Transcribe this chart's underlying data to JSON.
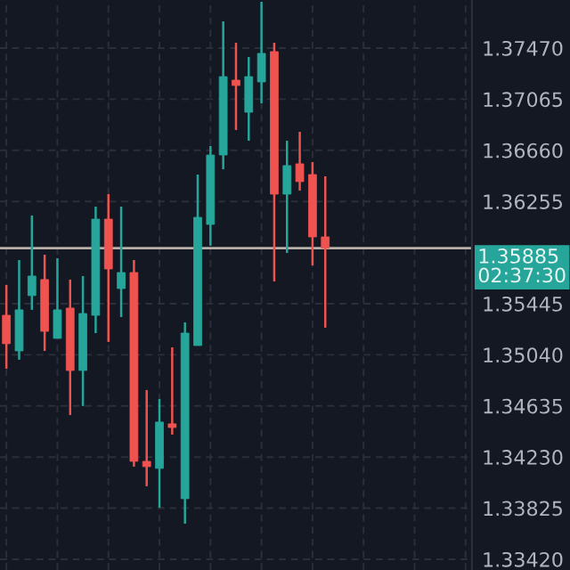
{
  "chart_data": {
    "type": "candlestick",
    "categories": [
      null,
      null,
      null,
      null,
      null,
      null,
      null,
      null,
      null,
      null,
      null,
      null,
      null,
      null,
      null,
      null,
      null,
      null,
      null,
      null,
      null,
      null,
      null,
      null,
      null,
      null,
      null,
      null,
      null,
      null,
      null,
      null,
      null,
      null,
      null,
      null,
      null
    ],
    "ohlc": [
      [
        1.35353,
        1.35593,
        1.3493,
        1.35128
      ],
      [
        1.35071,
        1.35791,
        1.35001,
        1.35396
      ],
      [
        1.35509,
        1.36144,
        1.35396,
        1.35664
      ],
      [
        1.35636,
        1.35833,
        1.35071,
        1.35226
      ],
      [
        1.3517,
        1.35805,
        1.3517,
        1.35396
      ],
      [
        1.3541,
        1.35636,
        1.34563,
        1.34916
      ],
      [
        1.34916,
        1.35664,
        1.34634,
        1.35367
      ],
      [
        1.35353,
        1.36214,
        1.35212,
        1.36115
      ],
      [
        1.36115,
        1.36313,
        1.35142,
        1.3572
      ],
      [
        1.35565,
        1.36214,
        1.35339,
        1.35692
      ],
      [
        1.35692,
        1.35791,
        1.34154,
        1.34196
      ],
      [
        1.34196,
        1.34761,
        1.33999,
        1.34154
      ],
      [
        1.3414,
        1.3469,
        1.33829,
        1.34507
      ],
      [
        1.34493,
        1.35099,
        1.34408,
        1.34464
      ],
      [
        1.339,
        1.35297,
        1.33702,
        1.35212
      ],
      [
        1.35113,
        1.36468,
        1.35113,
        1.36129
      ],
      [
        1.36073,
        1.36694,
        1.35904,
        1.36623
      ],
      [
        1.36623,
        1.37682,
        1.3651,
        1.37244
      ],
      [
        1.37216,
        1.37512,
        1.36821,
        1.37174
      ],
      [
        1.36962,
        1.37399,
        1.36736,
        1.37244
      ],
      [
        1.37202,
        1.37837,
        1.37033,
        1.37428
      ],
      [
        1.37442,
        1.37512,
        1.35621,
        1.36313
      ],
      [
        1.36313,
        1.36736,
        1.35847,
        1.36539
      ],
      [
        1.36553,
        1.36807,
        1.36341,
        1.36412
      ],
      [
        1.36468,
        1.36567,
        1.35748,
        1.35974
      ],
      [
        1.35974,
        1.36454,
        1.35255,
        1.35885
      ],
      null,
      null,
      null,
      null,
      null,
      null,
      null,
      null,
      null,
      null,
      null
    ],
    "colors": [
      "#ef5350",
      "#26a69a",
      "#26a69a",
      "#ef5350",
      "#26a69a",
      "#ef5350",
      "#26a69a",
      "#26a69a",
      "#ef5350",
      "#26a69a",
      "#ef5350",
      "#ef5350",
      "#26a69a",
      "#ef5350",
      "#26a69a",
      "#26a69a",
      "#26a69a",
      "#26a69a",
      "#ef5350",
      "#26a69a",
      "#26a69a",
      "#ef5350",
      "#26a69a",
      "#ef5350",
      "#ef5350",
      "#ef5350",
      null,
      null,
      null,
      null,
      null,
      null,
      null,
      null,
      null,
      null,
      null
    ],
    "ylim": [
      1.33335,
      1.37851
    ],
    "yticks": [
      {
        "value": 1.3747,
        "label": "1.37470"
      },
      {
        "value": 1.37065,
        "label": "1.37065"
      },
      {
        "value": 1.3666,
        "label": "1.36660"
      },
      {
        "value": 1.36255,
        "label": "1.36255"
      },
      {
        "value": 1.35445,
        "label": "1.35445"
      },
      {
        "value": 1.3504,
        "label": "1.35040"
      },
      {
        "value": 1.34635,
        "label": "1.34635"
      },
      {
        "value": 1.3423,
        "label": "1.34230"
      },
      {
        "value": 1.33825,
        "label": "1.33825"
      },
      {
        "value": 1.3342,
        "label": "1.33420"
      }
    ],
    "ref_lines": [
      {
        "axis": "y",
        "value": 1.35885,
        "label": "1.35885\n02:37:30",
        "color": "#b8b0a8",
        "line_style": "solid"
      }
    ],
    "grid": true,
    "tick_labels": "y"
  }
}
